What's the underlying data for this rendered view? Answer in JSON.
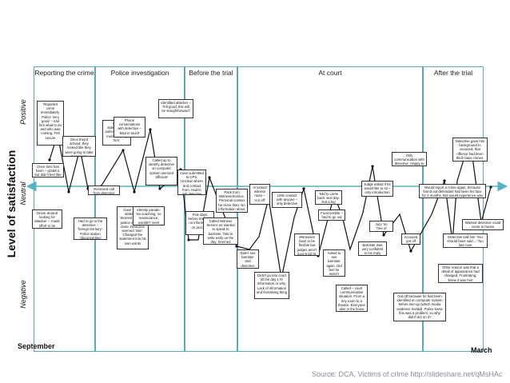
{
  "axis": {
    "title": "Level of satisfaction",
    "levels": [
      "Positive",
      "Neutral",
      "Negative"
    ],
    "start_label": "September",
    "end_label": "March"
  },
  "phases": [
    {
      "key": "reporting",
      "title": "Reporting the crime"
    },
    {
      "key": "police",
      "title": "Police investigation"
    },
    {
      "key": "before_trial",
      "title": "Before the trial"
    },
    {
      "key": "court",
      "title": "At court"
    },
    {
      "key": "after",
      "title": "After the trial"
    }
  ],
  "notes": [
    {
      "key": "reported",
      "text": "Reported crime immediately. Police ‘very good’ – told him what to do and who was coming. Felt secure"
    },
    {
      "key": "arrived",
      "text": "Once they'd arrived, they looked like they were going to take it seriously"
    },
    {
      "key": "nohelp",
      "text": "Once time has been – grateful, but didn't feel like standard service"
    },
    {
      "key": "witness_statement",
      "text": "Gave statement in police car – felt more ‘helping him’"
    },
    {
      "key": "phone",
      "text": "Phone conversations with detective – ‘kept in touch’"
    },
    {
      "key": "identified",
      "text": "Identified attacker – ‘felt good; this will be straightforward’"
    },
    {
      "key": "called_identify",
      "text": "Called up to identify detective on computer system seemed ‘efficient’"
    },
    {
      "key": "received_call",
      "text": "Received call from detective"
    },
    {
      "key": "hadtogo",
      "text": "Had to go to the detective – ‘foreign territory’. Police station ‘disconcerting’"
    },
    {
      "key": "formal_statement",
      "text": "Gave formal statement. Worried whether justice would be done. Detective seemed ‘slim’. Changed the statement into his own words"
    },
    {
      "key": "identity_no",
      "text": "Identity parade: No coaching, no reassurance; wouldn't meet attacker"
    },
    {
      "key": "case_cps",
      "text": "Case submitted to CPS. Unclear where and contact from. Had to ask detective"
    },
    {
      "key": "few_days",
      "text": "Few days before trial, still no information on process"
    },
    {
      "key": "called_witness",
      "text": "Called Witness Service as wanted to speak to barrister. Told to write early on the day. Seemed ‘disorganised’"
    },
    {
      "key": "pack",
      "text": "Pack from Witness/Service. Personal contact far more than. No information about process ahead"
    },
    {
      "key": "in_locked",
      "text": "In locked witness room – ‘cut off’"
    },
    {
      "key": "didnt_see",
      "text": "Didn't see barrister and detective late"
    },
    {
      "key": "little_contact",
      "text": "Little contact with anyone – only detective"
    },
    {
      "key": "didnt_go",
      "text": "Didn't go into court till the day 1 hr information or why. Lack of information and frustrating thing"
    },
    {
      "key": "witnesses",
      "text": "Witnesses have to be flexible but judges aren't (Leo 9-12-3). Annoying"
    },
    {
      "key": "told_come_back",
      "text": "Told to come back next day. Not a big problem"
    },
    {
      "key": "food_terrible",
      "text": "Food terrible – had to go out"
    },
    {
      "key": "asked_see",
      "text": "Asked to see barrister again. Did feel he wasn't information"
    },
    {
      "key": "called_court",
      "text": "Called – court communication situation. From a tiny room to a theatre. Everyone else in the know"
    },
    {
      "key": "judge_asked",
      "text": "Judge asked if he would like to sit – only introduction"
    },
    {
      "key": "jury_free",
      "text": "Jury ‘no ‘free of brave’"
    },
    {
      "key": "barrister_very",
      "text": "Barrister was very confident in his reply"
    },
    {
      "key": "accused",
      "text": "Accused got off"
    },
    {
      "key": "only_communication",
      "text": "Only communication with detective. Happy to explain situation"
    },
    {
      "key": "detective_gave",
      "text": "Detective gave him background to accused; that offence had been third-class crimes. Felt a bit better"
    },
    {
      "key": "would_report",
      "text": "Would report a crime again, because found out defendant had been his face for 3 months. But would experience was a ‘waste of time’"
    },
    {
      "key": "got_off_because",
      "text": "Got off because he had been identified on computer system before line-up (which media evidence invalid). Police knew this was a problem, so why didn't act on it?"
    },
    {
      "key": "other_reason",
      "text": "Other reason was that a detail of appearance had changed. Frustrating; ‘knew it was him’"
    },
    {
      "key": "wanted_detective",
      "text": "Wanted detective could come to house"
    },
    {
      "key": "detective_told",
      "text": "Detective told him ‘You should have said…’ Too late now"
    }
  ],
  "source_note": "Source: DCA, Victims of crime http://slideshare.net/qMsHAc"
}
